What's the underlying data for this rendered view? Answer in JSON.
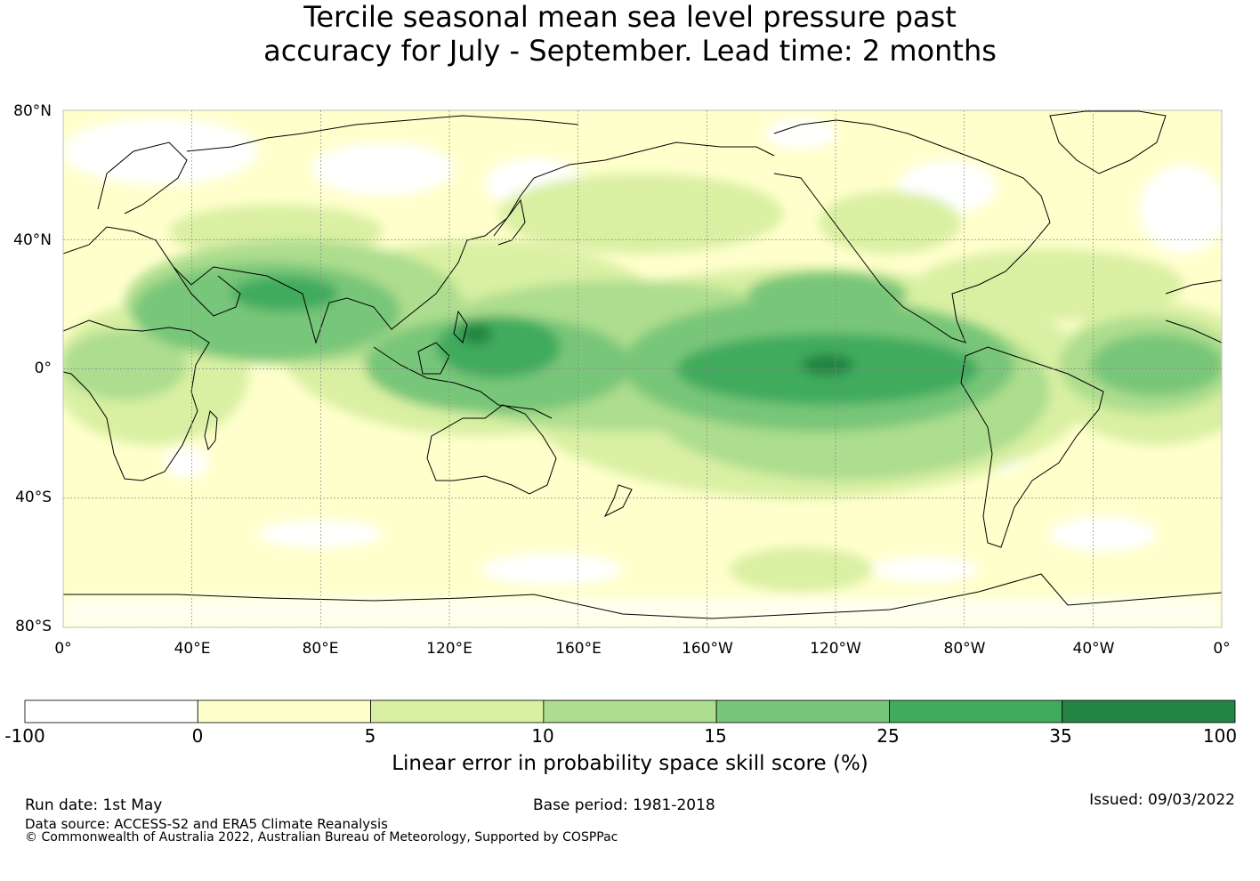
{
  "title": {
    "line1": "Tercile seasonal mean sea level pressure past",
    "line2": "accuracy for July - September. Lead time: 2 months"
  },
  "map": {
    "lat_labels": [
      "80°N",
      "40°N",
      "0°",
      "40°S",
      "80°S"
    ],
    "lat_values": [
      80,
      40,
      0,
      -40,
      -80
    ],
    "lon_labels": [
      "0°",
      "40°E",
      "80°E",
      "120°E",
      "160°E",
      "160°W",
      "120°W",
      "80°W",
      "40°W",
      "0°"
    ],
    "lon_values": [
      0,
      40,
      80,
      120,
      160,
      200,
      240,
      280,
      320,
      360
    ]
  },
  "colorbar": {
    "title": "Linear error in probability space skill score (%)",
    "bounds": [
      "-100",
      "0",
      "5",
      "10",
      "15",
      "25",
      "35",
      "100"
    ],
    "colors": [
      "#ffffff",
      "#ffffcc",
      "#d9f0a3",
      "#addd8e",
      "#78c679",
      "#41ab5d",
      "#238443"
    ]
  },
  "footer": {
    "run_date": "Run date: 1st May",
    "base_period": "Base period: 1981-2018",
    "issued": "Issued: 09/03/2022",
    "data_source": "Data source: ACCESS-S2 and ERA5 Climate Reanalysis",
    "copyright": "© Commonwealth of Australia 2022, Australian Bureau of Meteorology, Supported by COSPPac"
  }
}
